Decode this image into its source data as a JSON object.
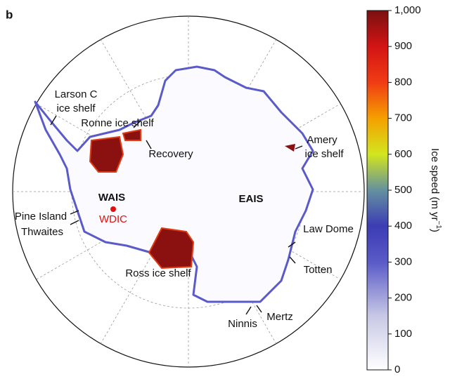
{
  "panel_label": "b",
  "map": {
    "labels": {
      "larson_c": [
        "Larson C",
        "ice shelf"
      ],
      "ronne": "Ronne ice shelf",
      "recovery": "Recovery",
      "amery": [
        "Amery",
        "ice shelf"
      ],
      "wais": "WAIS",
      "eais": "EAIS",
      "wdic": "WDIC",
      "pine_island": "Pine Island",
      "thwaites": "Thwaites",
      "law_dome": "Law Dome",
      "totten": "Totten",
      "ross": "Ross ice shelf",
      "ninnis": "Ninnis",
      "mertz": "Mertz"
    }
  },
  "colorbar": {
    "lim": [
      0,
      1000
    ],
    "ticks": [
      0,
      100,
      200,
      300,
      400,
      500,
      600,
      700,
      800,
      900,
      {
        "value": 1000,
        "label": "1,000"
      }
    ],
    "label": {
      "text": "Ice speed (m yr",
      "sup": "−1",
      "end": ")"
    }
  }
}
